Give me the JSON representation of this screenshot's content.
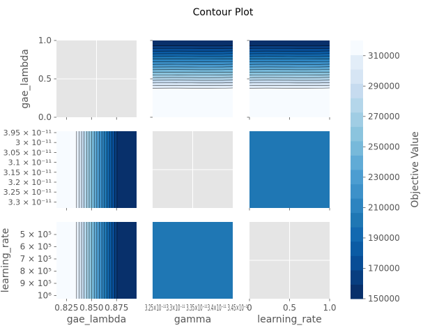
{
  "chart_data": {
    "type": "contour",
    "title": "Contour Plot",
    "params": [
      "gae_lambda",
      "gamma",
      "learning_rate"
    ],
    "panel_bg": "#e5e5e5",
    "grid_color": "#ffffff",
    "colorbar": {
      "label": "Objective Value",
      "min": 150000,
      "max": 320000,
      "step": 10000,
      "ticks": [
        150000,
        170000,
        190000,
        210000,
        230000,
        250000,
        270000,
        290000,
        310000
      ],
      "tick_labels": [
        "150000",
        "170000",
        "190000",
        "210000",
        "230000",
        "250000",
        "270000",
        "290000",
        "310000"
      ],
      "colors": [
        "#08306b",
        "#083e80",
        "#084d96",
        "#0b5ba4",
        "#1369b0",
        "#1f77b4",
        "#2d84c0",
        "#3d91c9",
        "#4c9dd1",
        "#60abd6",
        "#77b9da",
        "#8bc4de",
        "#a0cde4",
        "#b4d6ea",
        "#c6dbef",
        "#d6e5f4",
        "#e2edf8",
        "#f7fbff"
      ]
    },
    "axes": {
      "gae_lambda": {
        "range": [
          0.815,
          0.895
        ],
        "ticks": [
          0.825,
          0.85,
          0.875
        ],
        "tick_labels": [
          "0.825",
          "0.850",
          "0.875"
        ]
      },
      "gae_lambda_row": {
        "range": [
          0.0,
          1.0
        ],
        "ticks": [
          0.0,
          0.5,
          1.0
        ],
        "tick_labels": [
          "0.0",
          "0.5",
          "1.0"
        ]
      },
      "gamma_row": {
        "tick_labels": [
          "3.95 × 10⁻¹¹",
          "3 × 10⁻¹¹",
          "3.05 × 10⁻¹¹",
          "3.1 × 10⁻¹¹",
          "3.15 × 10⁻¹¹",
          "3.2 × 10⁻¹¹",
          "3.25 × 10⁻¹¹",
          "3.3 × 10⁻¹¹"
        ]
      },
      "learning_rate_row": {
        "tick_labels": [
          "5 × 10⁵",
          "6 × 10⁵",
          "7 × 10⁵",
          "8 × 10⁵",
          "9 × 10⁵",
          "10⁶"
        ]
      },
      "learning_rate_col": {
        "range": [
          0.0,
          1.0
        ],
        "ticks": [
          0.0,
          0.5,
          1.0
        ],
        "tick_labels": [
          "0",
          "0.5",
          "1.0"
        ]
      }
    },
    "gamma_col_tick_text": "3.25×10⁻¹¹3.3×10⁻¹¹ 3.35×10⁻¹¹3.4×10⁻¹¹ 3.45×10⁻¹¹",
    "subplots": [
      {
        "row": 0,
        "col": 0,
        "kind": "empty"
      },
      {
        "row": 0,
        "col": 1,
        "kind": "fill",
        "gradient": "vertical-dark-top",
        "objective_top": 150000,
        "objective_bottom": 320000
      },
      {
        "row": 0,
        "col": 2,
        "kind": "fill",
        "gradient": "vertical-dark-top",
        "objective_top": 150000,
        "objective_bottom": 320000
      },
      {
        "row": 1,
        "col": 0,
        "kind": "fill",
        "gradient": "horizontal-dark-right",
        "x_light_until": 0.835,
        "x_dark_from": 0.878,
        "objective_left": 320000,
        "objective_right": 150000
      },
      {
        "row": 1,
        "col": 1,
        "kind": "empty"
      },
      {
        "row": 1,
        "col": 2,
        "kind": "solid",
        "objective": 205000
      },
      {
        "row": 2,
        "col": 0,
        "kind": "fill",
        "gradient": "horizontal-dark-right",
        "x_light_until": 0.835,
        "x_dark_from": 0.878,
        "objective_left": 320000,
        "objective_right": 150000
      },
      {
        "row": 2,
        "col": 1,
        "kind": "solid",
        "objective": 205000
      },
      {
        "row": 2,
        "col": 2,
        "kind": "empty"
      }
    ]
  }
}
